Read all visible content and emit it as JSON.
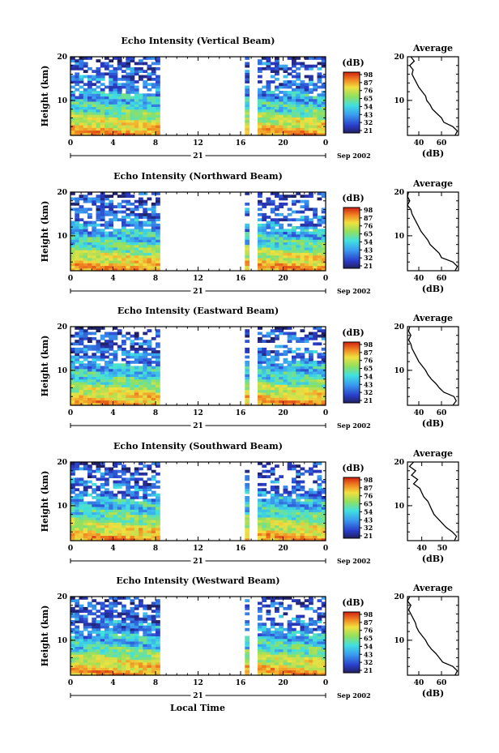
{
  "figure": {
    "xaxis_label": "Local Time",
    "date_label": "Sep 2002",
    "day_label": "21",
    "avg_xlabel": "(dB)",
    "colorbar_label": "(dB)",
    "panel_ylabel": "Height (km)"
  },
  "chart_data": [
    {
      "type": "heatmap",
      "title": "Echo Intensity (Vertical Beam)",
      "ylabel": "Height (km)",
      "xlabel": "Local Time",
      "xticks": [
        "0",
        "4",
        "8",
        "12",
        "16",
        "20",
        "0"
      ],
      "xlim": [
        0,
        24
      ],
      "ylim": [
        2,
        20
      ],
      "yticks": [
        "10",
        "20"
      ],
      "colorbar": {
        "label": "(dB)",
        "ticks": [
          "21",
          "32",
          "43",
          "54",
          "65",
          "76",
          "87",
          "98"
        ]
      },
      "data_gaps_hours": [
        [
          8.5,
          16.6
        ],
        [
          16.9,
          17.8
        ]
      ],
      "average_profile": {
        "title": "Average",
        "xlabel": "(dB)",
        "xticks": [
          "40",
          "60"
        ],
        "xlim": [
          30,
          75
        ],
        "heights_km": [
          2,
          3,
          4,
          5,
          6,
          7,
          8,
          9,
          10,
          11,
          12,
          13,
          14,
          15,
          16,
          17,
          18,
          19,
          20
        ],
        "values_db": [
          72,
          74,
          70,
          62,
          60,
          56,
          52,
          50,
          47,
          46,
          43,
          40,
          38,
          36,
          34,
          35,
          32,
          36,
          33
        ]
      }
    },
    {
      "type": "heatmap",
      "title": "Echo Intensity (Northward Beam)",
      "ylabel": "Height (km)",
      "xlabel": "Local Time",
      "xticks": [
        "0",
        "4",
        "8",
        "12",
        "16",
        "20",
        "0"
      ],
      "xlim": [
        0,
        24
      ],
      "ylim": [
        2,
        20
      ],
      "yticks": [
        "10",
        "20"
      ],
      "colorbar": {
        "label": "(dB)",
        "ticks": [
          "21",
          "32",
          "43",
          "54",
          "65",
          "76",
          "87",
          "98"
        ]
      },
      "data_gaps_hours": [
        [
          8.5,
          16.6
        ],
        [
          16.9,
          17.8
        ]
      ],
      "average_profile": {
        "title": "Average",
        "xlabel": "(dB)",
        "xticks": [
          "40",
          "60"
        ],
        "xlim": [
          30,
          75
        ],
        "heights_km": [
          2,
          3,
          4,
          5,
          6,
          7,
          8,
          9,
          10,
          11,
          12,
          13,
          14,
          15,
          16,
          17,
          18,
          19,
          20
        ],
        "values_db": [
          72,
          74,
          70,
          60,
          58,
          54,
          50,
          48,
          45,
          42,
          40,
          38,
          36,
          34,
          33,
          30,
          32,
          30,
          31
        ]
      }
    },
    {
      "type": "heatmap",
      "title": "Echo Intensity (Eastward Beam)",
      "ylabel": "Height (km)",
      "xlabel": "Local Time",
      "xticks": [
        "0",
        "4",
        "8",
        "12",
        "16",
        "20",
        "0"
      ],
      "xlim": [
        0,
        24
      ],
      "ylim": [
        2,
        20
      ],
      "yticks": [
        "10",
        "20"
      ],
      "colorbar": {
        "label": "(dB)",
        "ticks": [
          "21",
          "32",
          "43",
          "54",
          "65",
          "76",
          "87",
          "98"
        ]
      },
      "data_gaps_hours": [
        [
          8.5,
          16.6
        ],
        [
          16.9,
          17.8
        ]
      ],
      "average_profile": {
        "title": "Average",
        "xlabel": "(dB)",
        "xticks": [
          "40",
          "60"
        ],
        "xlim": [
          30,
          75
        ],
        "heights_km": [
          2,
          3,
          4,
          5,
          6,
          7,
          8,
          9,
          10,
          11,
          12,
          13,
          14,
          15,
          16,
          17,
          18,
          19,
          20
        ],
        "values_db": [
          70,
          73,
          71,
          62,
          58,
          55,
          51,
          48,
          46,
          43,
          40,
          38,
          36,
          34,
          33,
          31,
          33,
          31,
          32
        ]
      }
    },
    {
      "type": "heatmap",
      "title": "Echo Intensity (Southward Beam)",
      "ylabel": "Height (km)",
      "xlabel": "Local Time",
      "xticks": [
        "0",
        "4",
        "8",
        "12",
        "16",
        "20",
        "0"
      ],
      "xlim": [
        0,
        24
      ],
      "ylim": [
        2,
        20
      ],
      "yticks": [
        "10",
        "20"
      ],
      "colorbar": {
        "label": "(dB)",
        "ticks": [
          "21",
          "32",
          "43",
          "54",
          "65",
          "76",
          "87",
          "98"
        ]
      },
      "data_gaps_hours": [
        [
          8.5,
          16.6
        ],
        [
          16.9,
          17.8
        ]
      ],
      "average_profile": {
        "title": "Average",
        "xlabel": "(dB)",
        "xticks": [
          "40",
          "50"
        ],
        "xlim": [
          33,
          58
        ],
        "heights_km": [
          2,
          3,
          4,
          5,
          6,
          7,
          8,
          9,
          10,
          11,
          12,
          13,
          14,
          15,
          16,
          17,
          18,
          19,
          20
        ],
        "values_db": [
          56,
          57,
          55,
          52,
          50,
          48,
          46,
          45,
          44,
          43,
          41,
          40,
          39,
          36,
          38,
          35,
          37,
          34,
          36
        ]
      }
    },
    {
      "type": "heatmap",
      "title": "Echo Intensity (Westward Beam)",
      "ylabel": "Height (km)",
      "xlabel": "Local Time",
      "xticks": [
        "0",
        "4",
        "8",
        "12",
        "16",
        "20",
        "0"
      ],
      "xlim": [
        0,
        24
      ],
      "ylim": [
        2,
        20
      ],
      "yticks": [
        "10",
        "20"
      ],
      "colorbar": {
        "label": "(dB)",
        "ticks": [
          "21",
          "32",
          "43",
          "54",
          "65",
          "76",
          "87",
          "98"
        ]
      },
      "data_gaps_hours": [
        [
          8.5,
          16.6
        ],
        [
          16.9,
          17.8
        ]
      ],
      "average_profile": {
        "title": "Average",
        "xlabel": "(dB)",
        "xticks": [
          "40",
          "60"
        ],
        "xlim": [
          30,
          75
        ],
        "heights_km": [
          2,
          3,
          4,
          5,
          6,
          7,
          8,
          9,
          10,
          11,
          12,
          13,
          14,
          15,
          16,
          17,
          18,
          19,
          20
        ],
        "values_db": [
          72,
          74,
          70,
          61,
          58,
          55,
          51,
          48,
          46,
          43,
          40,
          38,
          37,
          35,
          33,
          31,
          33,
          30,
          32
        ]
      }
    }
  ]
}
